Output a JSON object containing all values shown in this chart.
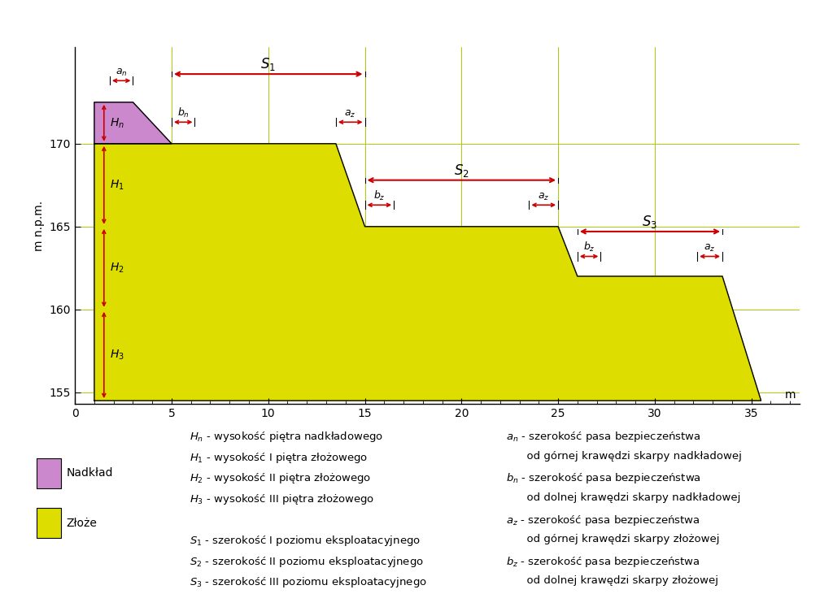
{
  "bg_color": "#ffffff",
  "fill_yellow": "#dddd00",
  "fill_purple": "#cc88cc",
  "line_color": "#000000",
  "red_color": "#cc0000",
  "grid_color": "#aacc00",
  "axis_label_y": "m n.p.m.",
  "axis_label_x": "m",
  "yticks": [
    155,
    160,
    165,
    170
  ],
  "xticks": [
    0,
    5,
    10,
    15,
    20,
    25,
    30,
    35
  ],
  "xlim": [
    0,
    37.5
  ],
  "ylim": [
    154.3,
    175.8
  ],
  "profile_yellow_x": [
    1.0,
    1.0,
    13.5,
    15.0,
    25.0,
    26.0,
    33.5,
    35.5,
    1.0
  ],
  "profile_yellow_y": [
    154.5,
    170.0,
    170.0,
    165.0,
    165.0,
    162.0,
    162.0,
    154.5,
    154.5
  ],
  "profile_purple_x": [
    1.0,
    1.0,
    3.0,
    5.0,
    1.0
  ],
  "profile_purple_y": [
    170.0,
    172.5,
    172.5,
    170.0,
    170.0
  ],
  "vlines_x": [
    5,
    10,
    15,
    20,
    25,
    30
  ],
  "hlines_y": [
    155,
    160,
    165,
    170
  ],
  "an_x1": 1.8,
  "an_x2": 3.0,
  "an_y": 173.8,
  "bn_x1": 5.0,
  "bn_x2": 6.2,
  "bn_y": 171.3,
  "az1_x1": 13.5,
  "az1_x2": 15.0,
  "az1_y": 171.3,
  "s1_x1": 5.0,
  "s1_x2": 15.0,
  "s1_y": 174.2,
  "bz2_x1": 15.0,
  "bz2_x2": 16.5,
  "bz2_y": 166.3,
  "az2_x1": 23.5,
  "az2_x2": 25.0,
  "az2_y": 166.3,
  "s2_x1": 15.0,
  "s2_x2": 25.0,
  "s2_y": 167.8,
  "bz3_x1": 26.0,
  "bz3_x2": 27.2,
  "bz3_y": 163.2,
  "az3_x1": 32.2,
  "az3_x2": 33.5,
  "az3_y": 163.2,
  "s3_x1": 26.0,
  "s3_x2": 33.5,
  "s3_y": 164.7,
  "Hn_y1": 170.0,
  "Hn_y2": 172.5,
  "Hn_x": 1.5,
  "H1_y1": 165.0,
  "H1_y2": 170.0,
  "H1_x": 1.5,
  "H2_y1": 160.0,
  "H2_y2": 165.0,
  "H2_x": 1.5,
  "H3_y1": 154.5,
  "H3_y2": 160.0,
  "H3_x": 1.5
}
